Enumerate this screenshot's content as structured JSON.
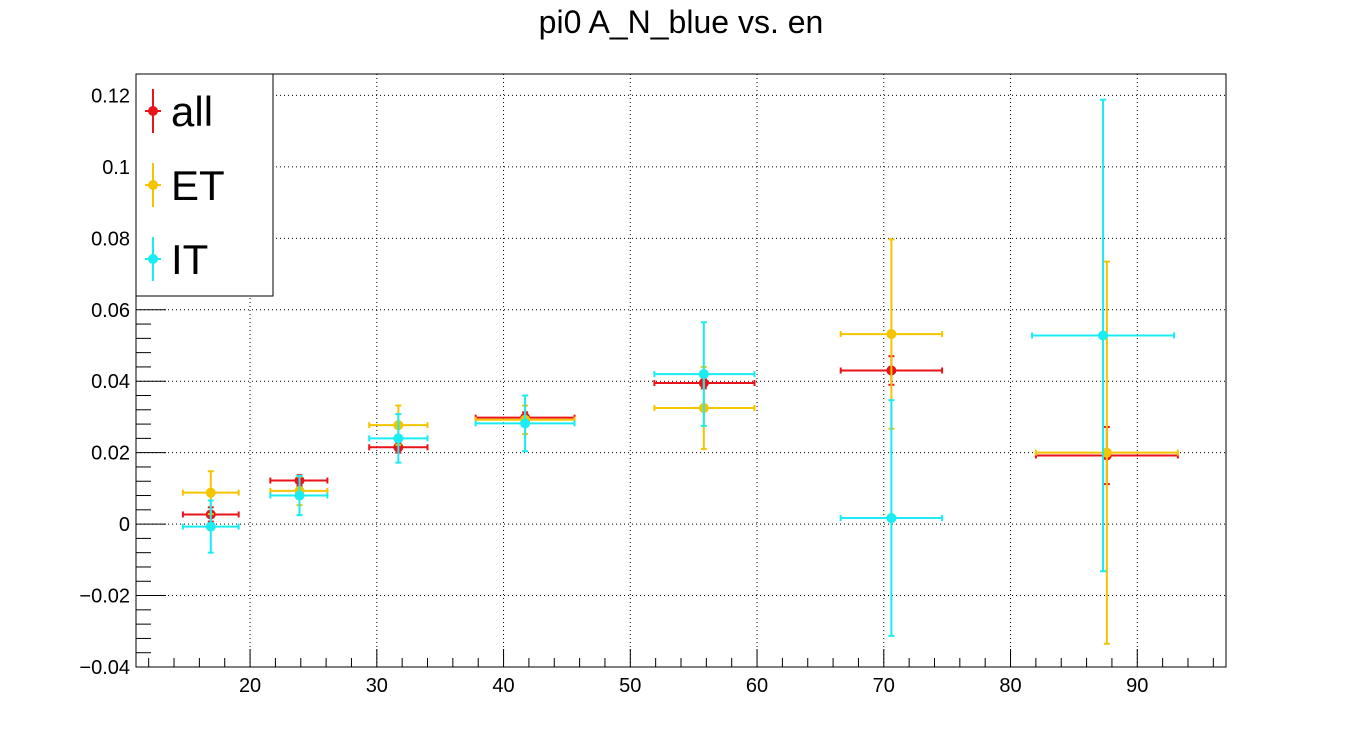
{
  "chart_data": {
    "type": "scatter",
    "title": "pi0 A_N_blue vs. en",
    "xlabel": "",
    "ylabel": "",
    "xlim": [
      11,
      97
    ],
    "ylim": [
      -0.04,
      0.126
    ],
    "x_ticks": [
      20,
      30,
      40,
      50,
      60,
      70,
      80,
      90
    ],
    "y_ticks": [
      -0.04,
      -0.02,
      0,
      0.02,
      0.04,
      0.06,
      0.08,
      0.1,
      0.12
    ],
    "x_tick_labels": [
      "20",
      "30",
      "40",
      "50",
      "60",
      "70",
      "80",
      "90"
    ],
    "y_tick_labels": [
      "−0.04",
      "−0.02",
      "0",
      "0.02",
      "0.04",
      "0.06",
      "0.08",
      "0.1",
      "0.12"
    ],
    "grid": true,
    "legend_position": "top-left",
    "series": [
      {
        "name": "all",
        "color": "#e8141a",
        "points": [
          {
            "x": 16.9,
            "y": 0.0027,
            "xerr": [
              14.7,
              19.1
            ],
            "yerr": 0.002
          },
          {
            "x": 23.9,
            "y": 0.0122,
            "xerr": [
              21.6,
              26.1
            ],
            "yerr": 0.0015
          },
          {
            "x": 31.7,
            "y": 0.0215,
            "xerr": [
              29.4,
              34.0
            ],
            "yerr": 0.0015
          },
          {
            "x": 41.7,
            "y": 0.0298,
            "xerr": [
              37.8,
              45.6
            ],
            "yerr": 0.0015
          },
          {
            "x": 55.8,
            "y": 0.0395,
            "xerr": [
              51.9,
              59.8
            ],
            "yerr": 0.0015
          },
          {
            "x": 70.6,
            "y": 0.043,
            "xerr": [
              66.6,
              74.6
            ],
            "yerr": 0.004
          },
          {
            "x": 87.6,
            "y": 0.0192,
            "xerr": [
              82.0,
              93.2
            ],
            "yerr": 0.008
          }
        ]
      },
      {
        "name": "ET",
        "color": "#f5c400",
        "points": [
          {
            "x": 16.9,
            "y": 0.0088,
            "xerr": [
              14.7,
              19.1
            ],
            "yerr": 0.006
          },
          {
            "x": 23.9,
            "y": 0.0093,
            "xerr": [
              21.6,
              26.1
            ],
            "yerr": 0.004
          },
          {
            "x": 31.7,
            "y": 0.0277,
            "xerr": [
              29.4,
              34.0
            ],
            "yerr": 0.0055
          },
          {
            "x": 41.7,
            "y": 0.0292,
            "xerr": [
              37.8,
              45.6
            ],
            "yerr": 0.004
          },
          {
            "x": 55.8,
            "y": 0.0325,
            "xerr": [
              51.9,
              59.8
            ],
            "yerr": 0.0115
          },
          {
            "x": 70.6,
            "y": 0.0532,
            "xerr": [
              66.6,
              74.6
            ],
            "yerr": 0.0265
          },
          {
            "x": 87.6,
            "y": 0.02,
            "xerr": [
              82.0,
              93.2
            ],
            "yerr": 0.0535
          }
        ]
      },
      {
        "name": "IT",
        "color": "#19ecf2",
        "points": [
          {
            "x": 16.9,
            "y": -0.0007,
            "xerr": [
              14.7,
              19.1
            ],
            "yerr": 0.0073
          },
          {
            "x": 23.9,
            "y": 0.008,
            "xerr": [
              21.6,
              26.1
            ],
            "yerr": 0.0055
          },
          {
            "x": 31.7,
            "y": 0.024,
            "xerr": [
              29.4,
              34.0
            ],
            "yerr": 0.0068
          },
          {
            "x": 41.7,
            "y": 0.0282,
            "xerr": [
              37.8,
              45.6
            ],
            "yerr": 0.0078
          },
          {
            "x": 55.8,
            "y": 0.042,
            "xerr": [
              51.9,
              59.8
            ],
            "yerr": 0.0145
          },
          {
            "x": 70.6,
            "y": 0.0017,
            "xerr": [
              66.6,
              74.6
            ],
            "yerr": 0.033
          },
          {
            "x": 87.3,
            "y": 0.0528,
            "xerr": [
              81.7,
              92.9
            ],
            "yerr": 0.066
          }
        ]
      }
    ]
  }
}
